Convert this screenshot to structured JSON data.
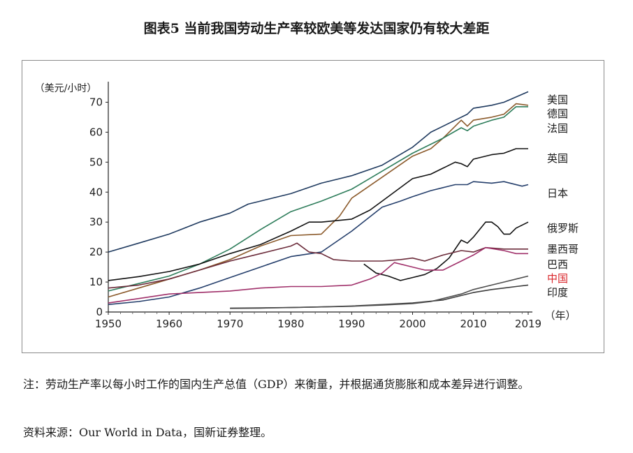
{
  "figure_title": "图表5 当前我国劳动生产率较欧美等发达国家仍有较大差距",
  "note": "注：劳动生产率以每小时工作的国内生产总值（GDP）来衡量，并根据通货膨胀和成本差异进行调整。",
  "source": "资料来源：Our World in Data，国新证券整理。",
  "chart_data": {
    "type": "line",
    "title": "",
    "ylabel": "（美元/小时）",
    "xlabel": "（年）",
    "xlim": [
      1950,
      2019
    ],
    "ylim": [
      0,
      75
    ],
    "x_ticks": [
      "1950",
      "1960",
      "1970",
      "1980",
      "1990",
      "2000",
      "2010",
      "2019"
    ],
    "y_ticks": [
      "0",
      "10",
      "20",
      "30",
      "40",
      "50",
      "60",
      "70"
    ],
    "grid": false,
    "legend": "right-end labels",
    "series": [
      {
        "name": "美国",
        "color": "#1f3a5f",
        "label_highlight": false,
        "points": [
          [
            1950,
            20
          ],
          [
            1955,
            23
          ],
          [
            1960,
            26
          ],
          [
            1965,
            30
          ],
          [
            1970,
            33
          ],
          [
            1973,
            36
          ],
          [
            1975,
            37
          ],
          [
            1980,
            39.5
          ],
          [
            1985,
            43
          ],
          [
            1990,
            45.5
          ],
          [
            1995,
            49
          ],
          [
            2000,
            55
          ],
          [
            2003,
            60
          ],
          [
            2005,
            62
          ],
          [
            2007,
            64
          ],
          [
            2009,
            66
          ],
          [
            2010,
            68
          ],
          [
            2013,
            69
          ],
          [
            2015,
            70
          ],
          [
            2019,
            73.5
          ]
        ]
      },
      {
        "name": "德国",
        "color": "#8b5a2b",
        "label_highlight": false,
        "points": [
          [
            1950,
            5
          ],
          [
            1955,
            8
          ],
          [
            1960,
            11
          ],
          [
            1965,
            14
          ],
          [
            1970,
            17.5
          ],
          [
            1975,
            22
          ],
          [
            1980,
            25.5
          ],
          [
            1985,
            26
          ],
          [
            1988,
            32
          ],
          [
            1990,
            38
          ],
          [
            1995,
            45
          ],
          [
            2000,
            52
          ],
          [
            2003,
            54.5
          ],
          [
            2005,
            58
          ],
          [
            2008,
            64
          ],
          [
            2009,
            62
          ],
          [
            2010,
            64
          ],
          [
            2013,
            65
          ],
          [
            2015,
            66
          ],
          [
            2017,
            69.5
          ],
          [
            2019,
            69
          ]
        ]
      },
      {
        "name": "法国",
        "color": "#2e7d5b",
        "label_highlight": false,
        "points": [
          [
            1950,
            7
          ],
          [
            1955,
            9.5
          ],
          [
            1960,
            12
          ],
          [
            1965,
            16
          ],
          [
            1970,
            21
          ],
          [
            1975,
            27.5
          ],
          [
            1980,
            33.5
          ],
          [
            1985,
            37
          ],
          [
            1990,
            41
          ],
          [
            1995,
            47
          ],
          [
            2000,
            53
          ],
          [
            2003,
            56
          ],
          [
            2005,
            58
          ],
          [
            2008,
            61.5
          ],
          [
            2009,
            60.5
          ],
          [
            2010,
            62
          ],
          [
            2013,
            64
          ],
          [
            2015,
            65
          ],
          [
            2017,
            68.5
          ],
          [
            2019,
            68.5
          ]
        ]
      },
      {
        "name": "英国",
        "color": "#111111",
        "label_highlight": false,
        "points": [
          [
            1950,
            10.5
          ],
          [
            1955,
            11.8
          ],
          [
            1960,
            13.5
          ],
          [
            1965,
            16
          ],
          [
            1970,
            19.5
          ],
          [
            1975,
            22.5
          ],
          [
            1980,
            27
          ],
          [
            1983,
            30
          ],
          [
            1985,
            30
          ],
          [
            1990,
            31
          ],
          [
            1993,
            34
          ],
          [
            1995,
            37
          ],
          [
            2000,
            44.5
          ],
          [
            2003,
            46
          ],
          [
            2005,
            48
          ],
          [
            2007,
            50
          ],
          [
            2008,
            49.5
          ],
          [
            2009,
            48.5
          ],
          [
            2010,
            51
          ],
          [
            2013,
            52.5
          ],
          [
            2015,
            53
          ],
          [
            2017,
            54.5
          ],
          [
            2019,
            54.5
          ]
        ]
      },
      {
        "name": "日本",
        "color": "#243e6b",
        "label_highlight": false,
        "points": [
          [
            1950,
            2.5
          ],
          [
            1955,
            3.5
          ],
          [
            1960,
            5
          ],
          [
            1965,
            8
          ],
          [
            1970,
            11.5
          ],
          [
            1975,
            15
          ],
          [
            1980,
            18.5
          ],
          [
            1985,
            20
          ],
          [
            1990,
            27
          ],
          [
            1995,
            35
          ],
          [
            1998,
            37
          ],
          [
            2000,
            38.5
          ],
          [
            2003,
            40.5
          ],
          [
            2005,
            41.5
          ],
          [
            2007,
            42.5
          ],
          [
            2009,
            42.5
          ],
          [
            2010,
            43.5
          ],
          [
            2013,
            43
          ],
          [
            2015,
            43.5
          ],
          [
            2018,
            42
          ],
          [
            2019,
            42.5
          ]
        ]
      },
      {
        "name": "俄罗斯",
        "color": "#111111",
        "label_highlight": false,
        "points": [
          [
            1992,
            16
          ],
          [
            1994,
            13
          ],
          [
            1996,
            12
          ],
          [
            1998,
            10.5
          ],
          [
            2000,
            11.5
          ],
          [
            2002,
            12.5
          ],
          [
            2004,
            14.5
          ],
          [
            2006,
            18
          ],
          [
            2008,
            24
          ],
          [
            2009,
            23
          ],
          [
            2010,
            25
          ],
          [
            2012,
            30
          ],
          [
            2013,
            30
          ],
          [
            2014,
            28.5
          ],
          [
            2015,
            26
          ],
          [
            2016,
            26
          ],
          [
            2017,
            28
          ],
          [
            2019,
            30
          ]
        ]
      },
      {
        "name": "墨西哥",
        "color": "#6b2b3a",
        "label_highlight": false,
        "points": [
          [
            1950,
            8
          ],
          [
            1955,
            9
          ],
          [
            1960,
            11
          ],
          [
            1965,
            14
          ],
          [
            1970,
            17
          ],
          [
            1975,
            19.5
          ],
          [
            1980,
            22
          ],
          [
            1981,
            23
          ],
          [
            1983,
            20
          ],
          [
            1985,
            19.5
          ],
          [
            1987,
            17.5
          ],
          [
            1990,
            17
          ],
          [
            1995,
            17
          ],
          [
            1998,
            17.5
          ],
          [
            2000,
            18
          ],
          [
            2002,
            17
          ],
          [
            2005,
            19
          ],
          [
            2008,
            20.5
          ],
          [
            2010,
            20
          ],
          [
            2012,
            21.5
          ],
          [
            2015,
            21
          ],
          [
            2017,
            21
          ],
          [
            2019,
            21
          ]
        ]
      },
      {
        "name": "巴西",
        "color": "#a0306a",
        "label_highlight": false,
        "points": [
          [
            1950,
            3
          ],
          [
            1955,
            4.5
          ],
          [
            1960,
            6
          ],
          [
            1965,
            6.5
          ],
          [
            1970,
            7
          ],
          [
            1975,
            8
          ],
          [
            1980,
            8.5
          ],
          [
            1985,
            8.5
          ],
          [
            1990,
            9
          ],
          [
            1993,
            11
          ],
          [
            1995,
            13
          ],
          [
            1997,
            16.5
          ],
          [
            2000,
            15
          ],
          [
            2002,
            14
          ],
          [
            2005,
            14
          ],
          [
            2008,
            17
          ],
          [
            2010,
            19
          ],
          [
            2012,
            21.5
          ],
          [
            2015,
            20.5
          ],
          [
            2017,
            19.5
          ],
          [
            2019,
            19.5
          ]
        ]
      },
      {
        "name": "中国",
        "color": "#3c3c3c",
        "label_highlight": true,
        "points": [
          [
            1970,
            1.2
          ],
          [
            1975,
            1.3
          ],
          [
            1980,
            1.5
          ],
          [
            1985,
            1.7
          ],
          [
            1990,
            2
          ],
          [
            1995,
            2.5
          ],
          [
            2000,
            3
          ],
          [
            2005,
            4
          ],
          [
            2008,
            5.5
          ],
          [
            2010,
            6.5
          ],
          [
            2013,
            7.5
          ],
          [
            2015,
            8
          ],
          [
            2017,
            8.5
          ],
          [
            2019,
            9
          ]
        ]
      },
      {
        "name": "印度",
        "color": "#4d4d4d",
        "label_highlight": false,
        "points": [
          [
            1970,
            1.3
          ],
          [
            1975,
            1.4
          ],
          [
            1980,
            1.5
          ],
          [
            1985,
            1.7
          ],
          [
            1990,
            1.9
          ],
          [
            1995,
            2.3
          ],
          [
            2000,
            2.8
          ],
          [
            2003,
            3.5
          ],
          [
            2005,
            4.5
          ],
          [
            2008,
            6
          ],
          [
            2010,
            7.5
          ],
          [
            2013,
            9
          ],
          [
            2015,
            10
          ],
          [
            2017,
            11
          ],
          [
            2019,
            12
          ]
        ]
      }
    ],
    "end_labels": [
      "美国",
      "德国",
      "法国",
      "英国",
      "日本",
      "俄罗斯",
      "墨西哥",
      "巴西",
      "中国",
      "印度"
    ]
  }
}
